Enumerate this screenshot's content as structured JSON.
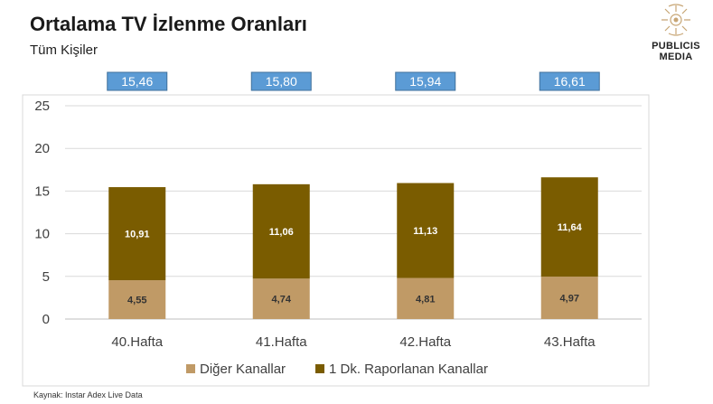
{
  "header": {
    "title": "Ortalama TV İzlenme Oranları",
    "subtitle": "Tüm Kişiler"
  },
  "logo": {
    "line1": "PUBLICIS",
    "line2": "MEDIA",
    "icon": "lion-emblem-icon"
  },
  "footer": {
    "source": "Kaynak: Instar  Adex Live Data"
  },
  "colors": {
    "diger": "#C09A66",
    "raporlanan": "#7A5C00",
    "total_box": "#5B9BD5",
    "grid": "#D9D9D9"
  },
  "chart_data": {
    "type": "bar",
    "stacked": true,
    "categories": [
      "40.Hafta",
      "41.Hafta",
      "42.Hafta",
      "43.Hafta"
    ],
    "series": [
      {
        "name": "Diğer Kanallar",
        "values": [
          4.55,
          4.74,
          4.81,
          4.97
        ],
        "labels": [
          "4,55",
          "4,74",
          "4,81",
          "4,97"
        ]
      },
      {
        "name": "1 Dk. Raporlanan Kanallar",
        "values": [
          10.91,
          11.06,
          11.13,
          11.64
        ],
        "labels": [
          "10,91",
          "11,06",
          "11,13",
          "11,64"
        ]
      }
    ],
    "totals": [
      15.46,
      15.8,
      15.94,
      16.61
    ],
    "total_labels": [
      "15,46",
      "15,80",
      "15,94",
      "16,61"
    ],
    "yticks": [
      "0",
      "5",
      "10",
      "15",
      "20",
      "25"
    ],
    "ylim": [
      0,
      25
    ],
    "grid": true,
    "legend": "bottom"
  }
}
